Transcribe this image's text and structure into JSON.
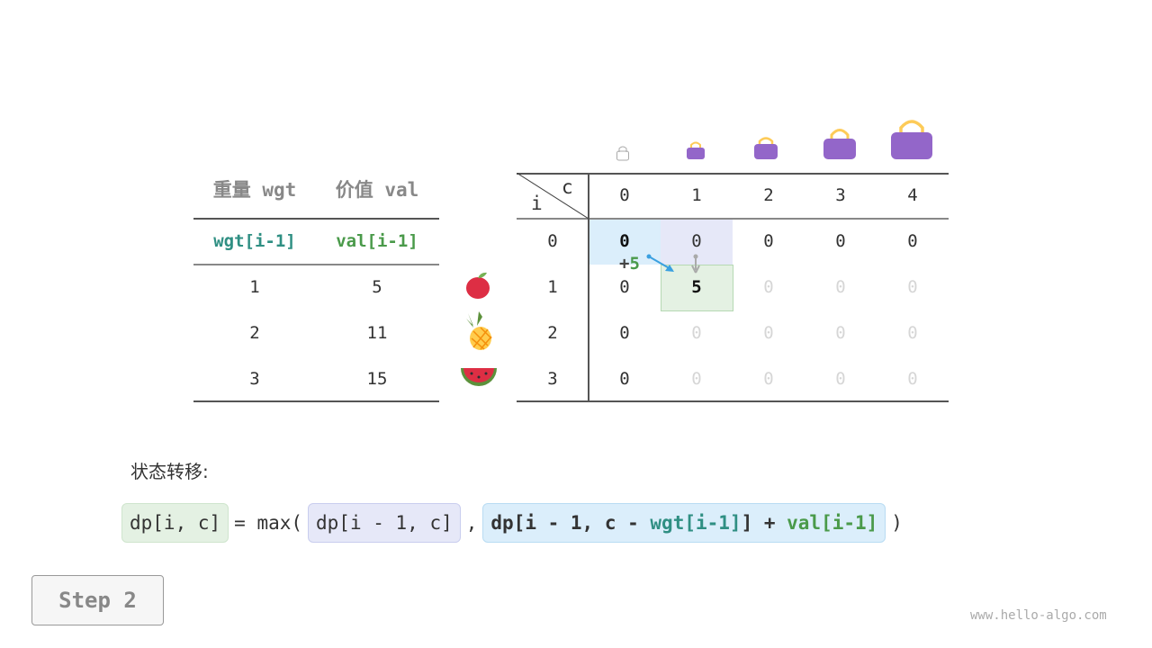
{
  "left_table": {
    "headers": [
      "重量 wgt",
      "价值 val"
    ],
    "subheaders": [
      "wgt[i-1]",
      "val[i-1]"
    ],
    "rows": [
      [
        "1",
        "5"
      ],
      [
        "2",
        "11"
      ],
      [
        "3",
        "15"
      ]
    ]
  },
  "items": [
    "apple-icon",
    "pineapple-icon",
    "watermelon-icon"
  ],
  "dp_table": {
    "corner_c": "c",
    "corner_i": "i",
    "col_headers": [
      "0",
      "1",
      "2",
      "3",
      "4"
    ],
    "row_headers": [
      "0",
      "1",
      "2",
      "3"
    ],
    "rows": [
      [
        "0",
        "0",
        "0",
        "0",
        "0"
      ],
      [
        "0",
        "5",
        "0",
        "0",
        "0"
      ],
      [
        "0",
        "0",
        "0",
        "0",
        "0"
      ],
      [
        "0",
        "0",
        "0",
        "0",
        "0"
      ]
    ],
    "annotation": {
      "plus": "+",
      "value": "5"
    }
  },
  "transition": {
    "label": "状态转移:",
    "lhs": "dp[i, c]",
    "eq": "= max(",
    "opt1": "dp[i - 1, c]",
    "comma": ",",
    "opt2_a": "dp[i - 1, c - ",
    "opt2_wgt": "wgt[i-1]",
    "opt2_b": "] + ",
    "opt2_val": "val[i-1]",
    "close": ")"
  },
  "step_label": "Step 2",
  "watermark": "www.hello-algo.com",
  "colors": {
    "teal": "#2f8f83",
    "green": "#4a9a4a",
    "blue_hl": "#dbeefb",
    "purple_hl": "#e6e8f8",
    "green_hl": "#e4f1e3",
    "bag": "#9366c9"
  }
}
